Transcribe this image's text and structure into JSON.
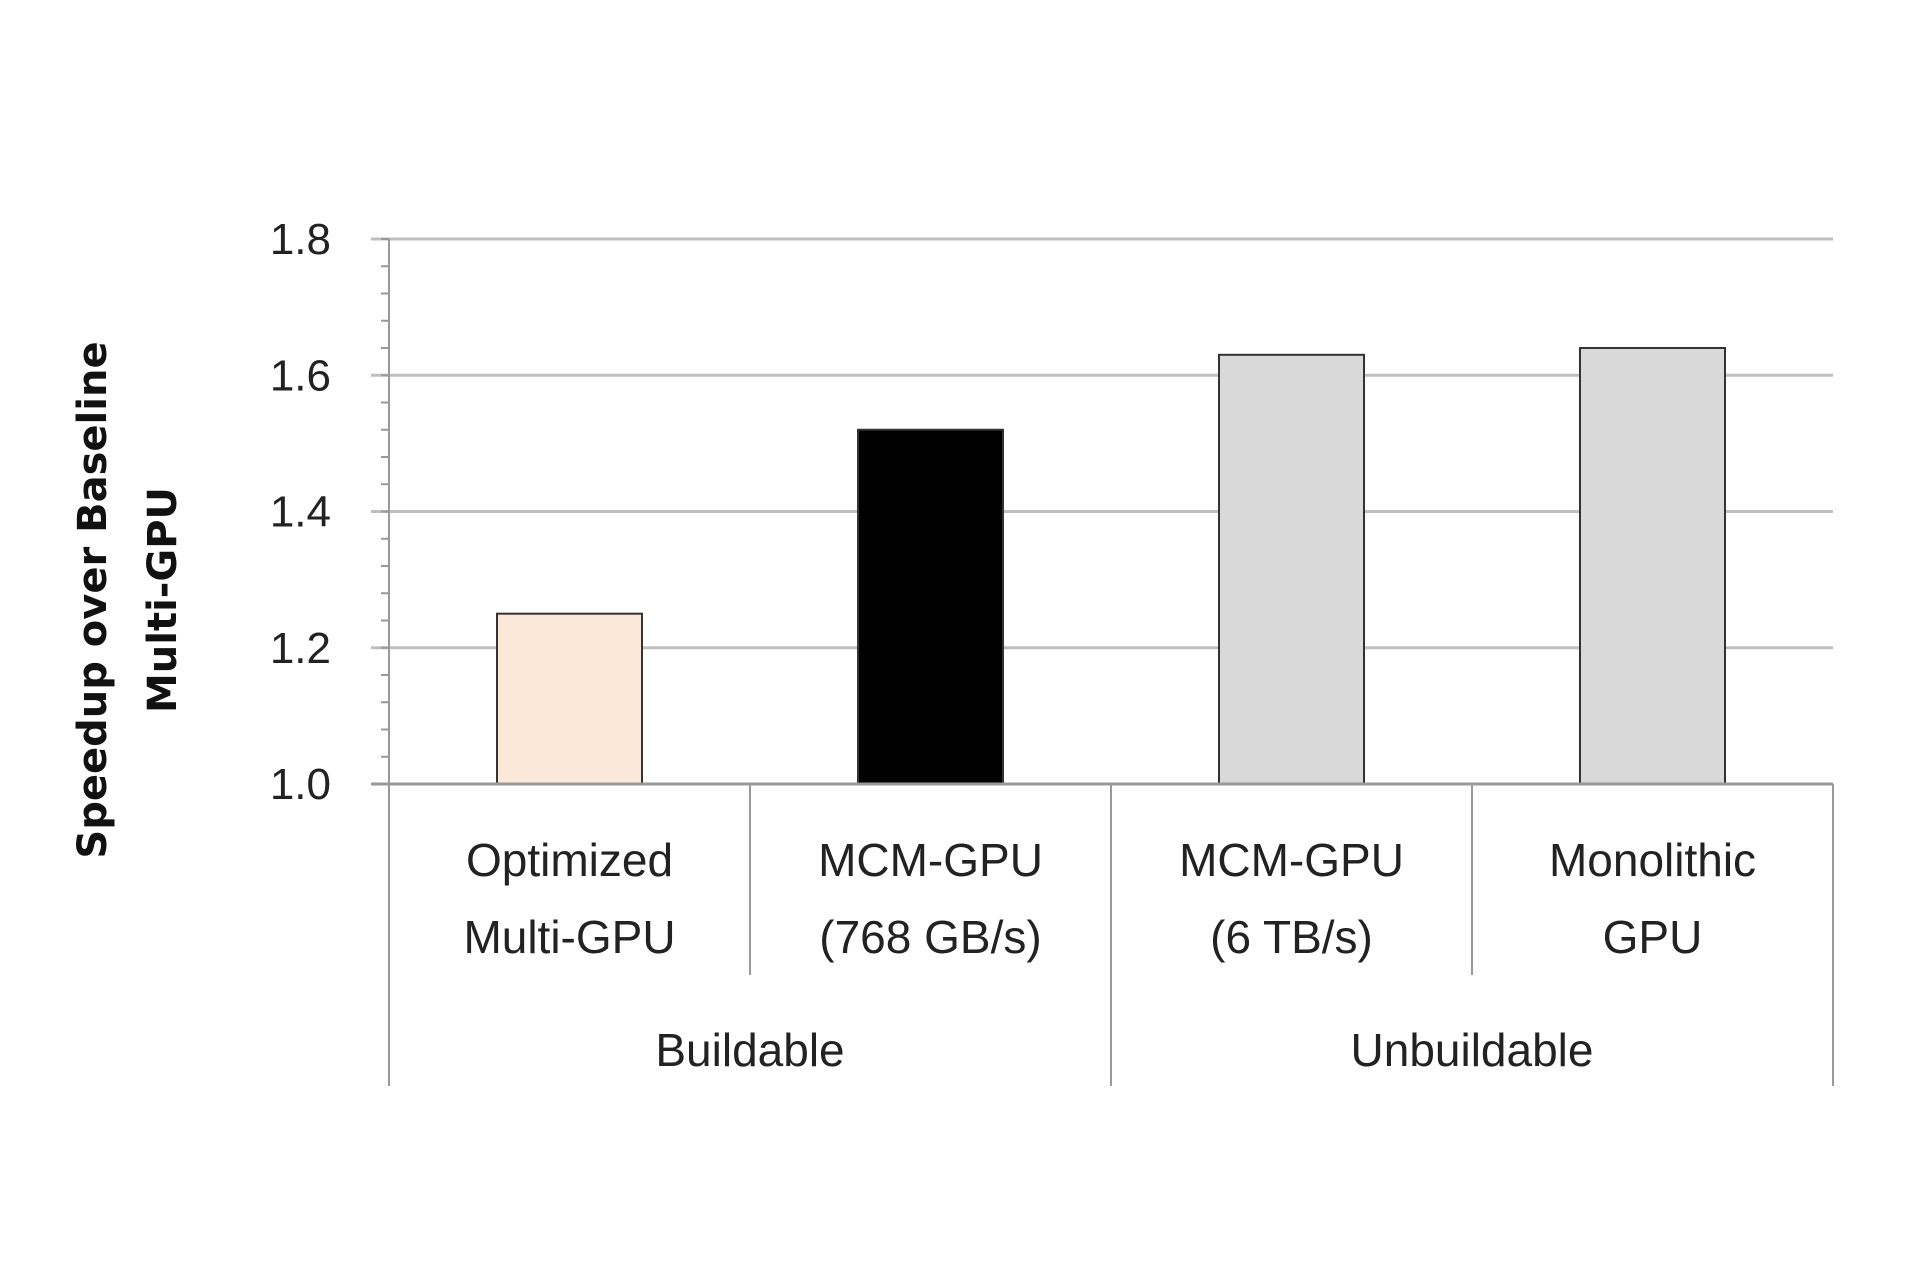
{
  "chart_data": {
    "type": "bar",
    "title": "",
    "xlabel": "",
    "ylabel": [
      "Speedup over Baseline",
      "Multi-GPU"
    ],
    "ylim": [
      1.0,
      1.8
    ],
    "yticks": [
      "1.0",
      "1.2",
      "1.4",
      "1.6",
      "1.8"
    ],
    "ytick_values": [
      1.0,
      1.2,
      1.4,
      1.6,
      1.8
    ],
    "minor_tick_step": 0.04,
    "grid": true,
    "categories": [
      [
        "Optimized",
        "Multi-GPU"
      ],
      [
        "MCM-GPU",
        "(768 GB/s)"
      ],
      [
        "MCM-GPU",
        "(6 TB/s)"
      ],
      [
        "Monolithic",
        "GPU"
      ]
    ],
    "groups": [
      {
        "label": "Buildable",
        "span": 2
      },
      {
        "label": "Unbuildable",
        "span": 2
      }
    ],
    "values": [
      1.25,
      1.52,
      1.63,
      1.64
    ],
    "colors": [
      "#fbe8d8",
      "#000000",
      "#d9d9d9",
      "#d9d9d9"
    ],
    "grid_color": "#bfbfbf"
  }
}
